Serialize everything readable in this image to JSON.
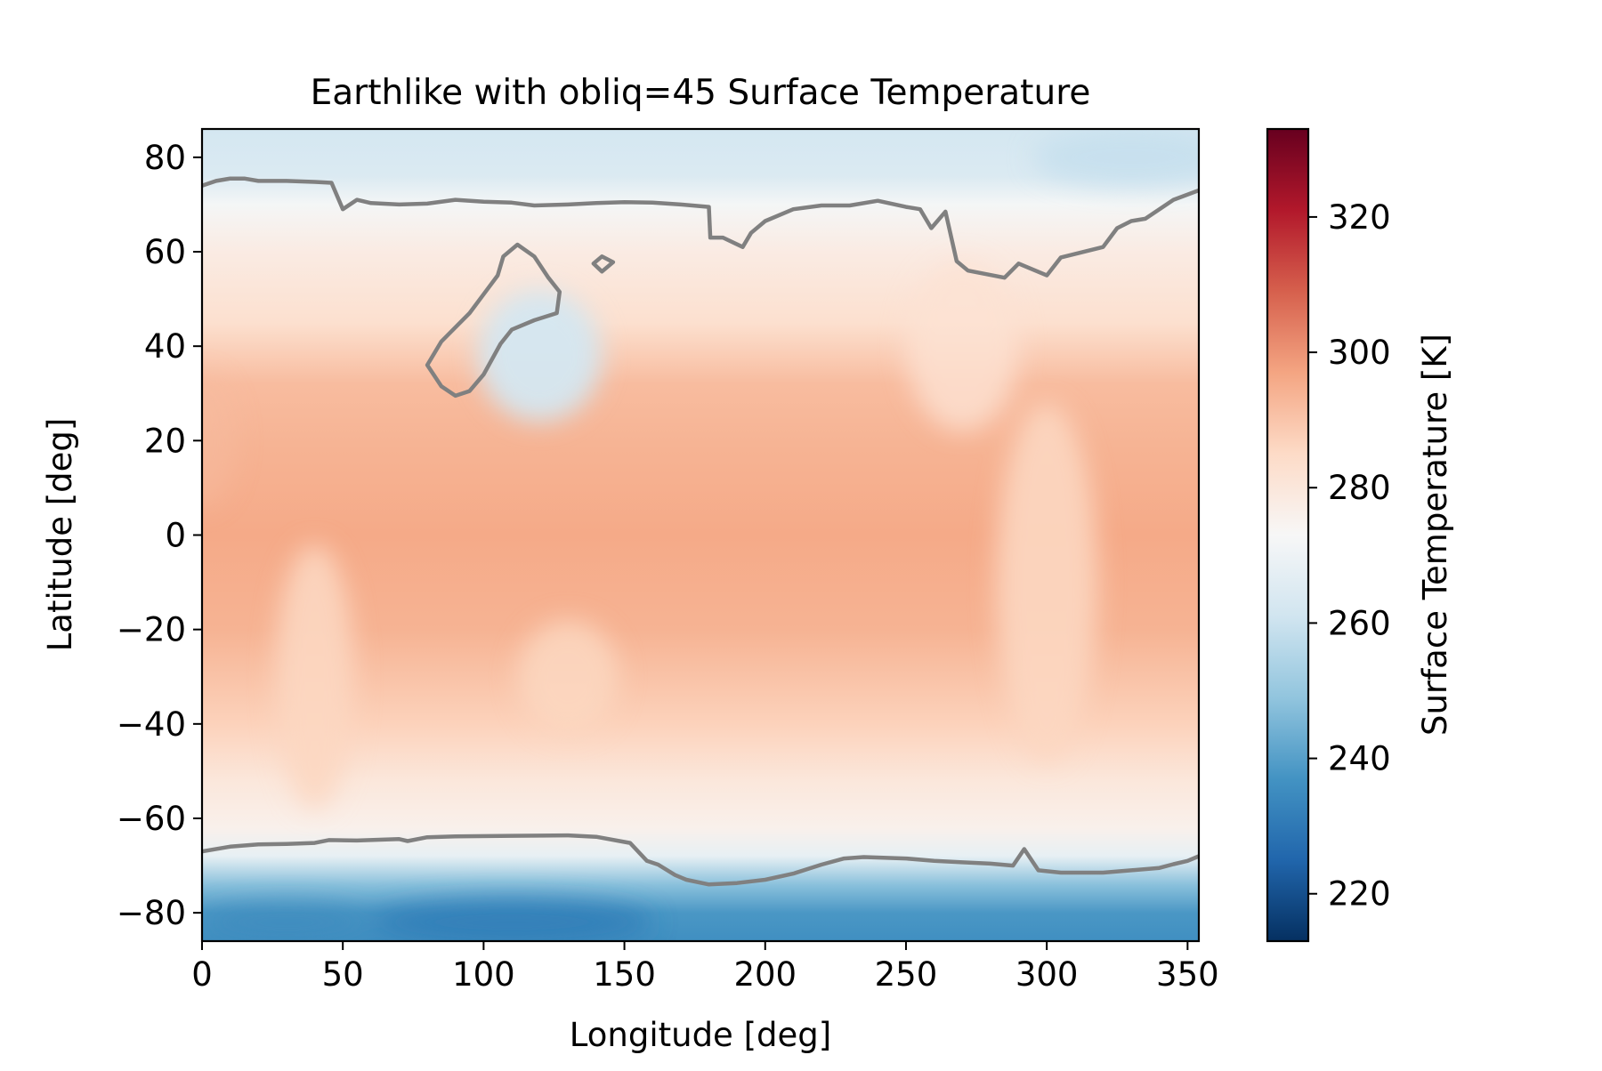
{
  "chart_data": {
    "type": "heatmap",
    "title": "Earthlike with obliq=45 Surface Temperature",
    "xlabel": "Longitude [deg]",
    "ylabel": "Latitude [deg]",
    "xlim": [
      0,
      354
    ],
    "ylim": [
      -86,
      86
    ],
    "xticks": [
      0,
      50,
      100,
      150,
      200,
      250,
      300,
      350
    ],
    "yticks": [
      -80,
      -60,
      -40,
      -20,
      0,
      20,
      40,
      60,
      80
    ],
    "colorbar": {
      "label": "Surface Temperature [K]",
      "range": [
        213,
        333
      ],
      "ticks": [
        220,
        240,
        260,
        280,
        300,
        320
      ],
      "colormap": [
        "#053061",
        "#2166ac",
        "#4393c3",
        "#92c5de",
        "#d1e5f0",
        "#f7f7f7",
        "#fddbc7",
        "#f4a582",
        "#d6604d",
        "#b2182b",
        "#67001f"
      ]
    },
    "contour": {
      "level": 273,
      "color": "#808080",
      "north_line": [
        [
          0,
          74
        ],
        [
          5,
          75
        ],
        [
          10,
          75.5
        ],
        [
          15,
          75.5
        ],
        [
          20,
          75
        ],
        [
          30,
          75
        ],
        [
          40,
          74.8
        ],
        [
          46,
          74.6
        ],
        [
          50,
          69
        ],
        [
          55,
          71
        ],
        [
          60,
          70.3
        ],
        [
          70,
          70
        ],
        [
          80,
          70.2
        ],
        [
          90,
          71
        ],
        [
          100,
          70.6
        ],
        [
          110,
          70.4
        ],
        [
          118,
          69.8
        ],
        [
          130,
          70
        ],
        [
          140,
          70.3
        ],
        [
          150,
          70.5
        ],
        [
          160,
          70.4
        ],
        [
          170,
          70
        ],
        [
          180,
          69.5
        ],
        [
          180.5,
          63
        ],
        [
          185,
          63
        ],
        [
          192,
          61
        ],
        [
          195,
          64
        ],
        [
          200,
          66.5
        ],
        [
          210,
          69
        ],
        [
          220,
          69.8
        ],
        [
          230,
          69.8
        ],
        [
          240,
          70.8
        ],
        [
          250,
          69.5
        ],
        [
          255,
          69
        ],
        [
          259,
          65
        ],
        [
          264,
          68.5
        ],
        [
          268,
          58
        ],
        [
          272,
          56
        ],
        [
          285,
          54.5
        ],
        [
          290,
          57.5
        ],
        [
          300,
          55
        ],
        [
          305,
          58.8
        ],
        [
          320,
          61
        ],
        [
          325,
          65
        ],
        [
          330,
          66.5
        ],
        [
          335,
          67
        ],
        [
          340,
          69
        ],
        [
          345,
          71
        ],
        [
          354,
          73
        ]
      ],
      "north_islands": [
        [
          [
            80,
            36
          ],
          [
            85,
            41
          ],
          [
            95,
            47
          ],
          [
            100,
            51
          ],
          [
            105,
            55
          ],
          [
            107,
            59
          ],
          [
            112,
            61.5
          ],
          [
            118,
            59
          ],
          [
            123,
            54.5
          ],
          [
            127,
            51.5
          ],
          [
            126,
            47
          ],
          [
            118,
            45.5
          ],
          [
            110,
            43.5
          ],
          [
            106,
            40.5
          ],
          [
            100,
            34
          ],
          [
            95,
            30.5
          ],
          [
            90,
            29.5
          ],
          [
            85,
            31.5
          ],
          [
            80,
            36
          ]
        ],
        [
          [
            139,
            57.5
          ],
          [
            142,
            59
          ],
          [
            146,
            57.8
          ],
          [
            142,
            55.8
          ],
          [
            139,
            57.5
          ]
        ]
      ],
      "south_line": [
        [
          0,
          -67
        ],
        [
          10,
          -66
        ],
        [
          20,
          -65.5
        ],
        [
          30,
          -65.4
        ],
        [
          40,
          -65.2
        ],
        [
          45,
          -64.6
        ],
        [
          55,
          -64.7
        ],
        [
          70,
          -64.4
        ],
        [
          73,
          -64.8
        ],
        [
          80,
          -64
        ],
        [
          90,
          -63.8
        ],
        [
          110,
          -63.7
        ],
        [
          130,
          -63.6
        ],
        [
          140,
          -63.9
        ],
        [
          150,
          -65
        ],
        [
          152,
          -65.2
        ],
        [
          158,
          -69
        ],
        [
          162,
          -69.8
        ],
        [
          168,
          -72
        ],
        [
          172,
          -73
        ],
        [
          180,
          -74
        ],
        [
          190,
          -73.7
        ],
        [
          200,
          -73
        ],
        [
          210,
          -71.7
        ],
        [
          220,
          -69.8
        ],
        [
          228,
          -68.5
        ],
        [
          235,
          -68.2
        ],
        [
          250,
          -68.5
        ],
        [
          260,
          -69
        ],
        [
          270,
          -69.3
        ],
        [
          280,
          -69.6
        ],
        [
          288,
          -70
        ],
        [
          292,
          -66.5
        ],
        [
          297,
          -71
        ],
        [
          305,
          -71.5
        ],
        [
          320,
          -71.5
        ],
        [
          330,
          -71
        ],
        [
          340,
          -70.5
        ],
        [
          345,
          -69.7
        ],
        [
          350,
          -69
        ],
        [
          354,
          -68
        ]
      ]
    }
  }
}
